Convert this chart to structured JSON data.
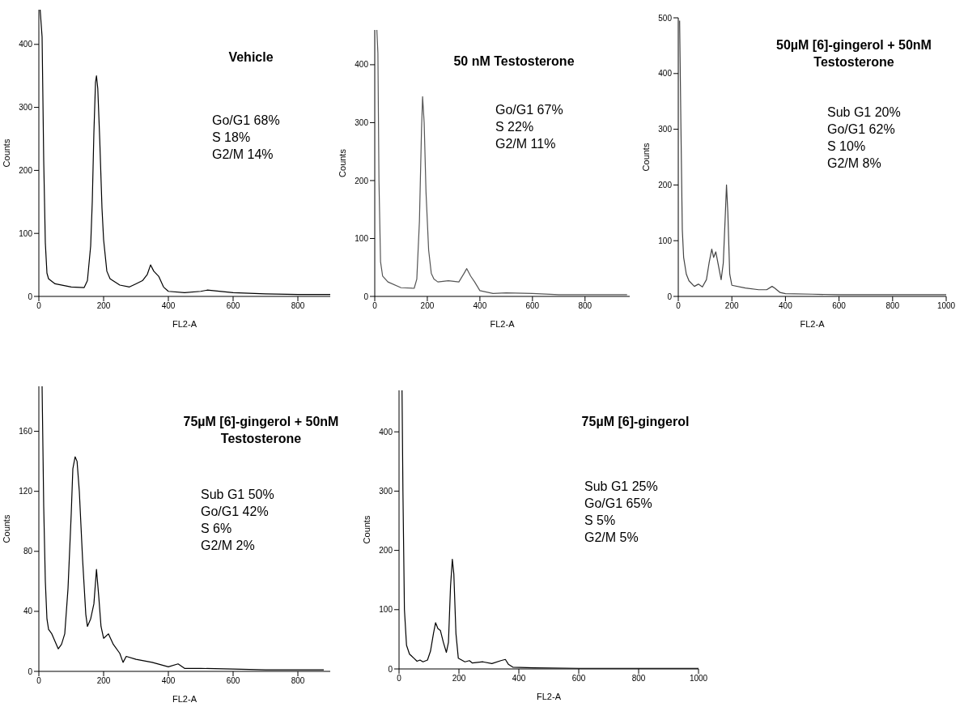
{
  "chart_data": [
    {
      "type": "line",
      "title": "Vehicle",
      "xlabel": "FL2-A",
      "ylabel": "Counts",
      "marker": "none",
      "color": "#000000",
      "xlim": [
        0,
        900
      ],
      "ylim": [
        0,
        455
      ],
      "xticks": [
        0,
        200,
        400,
        600,
        800
      ],
      "yticks": [
        0,
        100,
        200,
        300,
        400
      ],
      "x": [
        4,
        10,
        15,
        20,
        25,
        30,
        50,
        100,
        140,
        150,
        160,
        165,
        170,
        175,
        178,
        182,
        188,
        195,
        200,
        210,
        220,
        250,
        280,
        300,
        320,
        335,
        345,
        355,
        370,
        385,
        400,
        450,
        500,
        520,
        600,
        700,
        800,
        900
      ],
      "values": [
        455,
        412,
        216,
        85,
        37,
        28,
        20,
        15,
        14,
        25,
        80,
        150,
        260,
        340,
        350,
        330,
        250,
        140,
        90,
        40,
        28,
        18,
        15,
        20,
        25,
        35,
        50,
        40,
        32,
        15,
        8,
        6,
        8,
        10,
        6,
        4,
        3,
        3
      ],
      "annotations": [
        "Go/G1 68%",
        "S 18%",
        "G2/M 14%"
      ]
    },
    {
      "type": "line",
      "title": "50 nM Testosterone",
      "xlabel": "FL2-A",
      "ylabel": "Counts",
      "marker": "none",
      "color": "#555555",
      "xlim": [
        0,
        970
      ],
      "ylim": [
        0,
        460
      ],
      "xticks": [
        0,
        200,
        400,
        600,
        800
      ],
      "yticks": [
        0,
        100,
        200,
        300,
        400
      ],
      "x": [
        8,
        12,
        16,
        22,
        30,
        50,
        100,
        150,
        160,
        170,
        178,
        182,
        188,
        195,
        205,
        215,
        225,
        240,
        280,
        320,
        340,
        350,
        365,
        380,
        400,
        450,
        500,
        600,
        700,
        800,
        900,
        960
      ],
      "values": [
        460,
        420,
        200,
        60,
        35,
        25,
        15,
        14,
        30,
        130,
        290,
        345,
        300,
        180,
        80,
        40,
        30,
        25,
        27,
        25,
        40,
        48,
        35,
        25,
        10,
        5,
        6,
        5,
        3,
        3,
        3,
        3
      ],
      "annotations": [
        "Go/G1 67%",
        "S 22%",
        "G2/M 11%"
      ]
    },
    {
      "type": "line",
      "title": "50µM [6]-gingerol + 50nM Testosterone",
      "xlabel": "FL2-A",
      "ylabel": "Counts",
      "marker": "none",
      "color": "#444444",
      "xlim": [
        0,
        1000
      ],
      "ylim": [
        0,
        500
      ],
      "xticks": [
        0,
        200,
        400,
        600,
        800,
        1000
      ],
      "yticks": [
        0,
        100,
        200,
        300,
        400,
        500
      ],
      "x": [
        5,
        10,
        15,
        20,
        30,
        40,
        60,
        75,
        90,
        105,
        115,
        125,
        132,
        140,
        150,
        160,
        168,
        175,
        180,
        185,
        192,
        200,
        250,
        300,
        330,
        350,
        360,
        380,
        400,
        500,
        600,
        800,
        1000
      ],
      "values": [
        495,
        300,
        120,
        70,
        40,
        28,
        18,
        22,
        17,
        30,
        60,
        85,
        70,
        80,
        55,
        30,
        60,
        140,
        200,
        150,
        40,
        20,
        15,
        12,
        12,
        18,
        15,
        7,
        5,
        4,
        3,
        3,
        3
      ],
      "annotations": [
        "Sub G1 20%",
        "Go/G1 62%",
        "S 10%",
        "G2/M 8%"
      ]
    },
    {
      "type": "line",
      "title": "75µM [6]-gingerol + 50nM Testosterone",
      "xlabel": "FL2-A",
      "ylabel": "Counts",
      "marker": "none",
      "color": "#000000",
      "xlim": [
        0,
        900
      ],
      "ylim": [
        0,
        190
      ],
      "xticks": [
        0,
        200,
        400,
        600,
        800
      ],
      "yticks": [
        0,
        40,
        80,
        120,
        160
      ],
      "x": [
        10,
        15,
        20,
        25,
        30,
        40,
        50,
        60,
        70,
        80,
        90,
        100,
        105,
        112,
        118,
        125,
        135,
        145,
        150,
        160,
        170,
        178,
        185,
        192,
        200,
        215,
        230,
        250,
        260,
        270,
        300,
        350,
        400,
        430,
        450,
        500,
        600,
        700,
        800,
        880
      ],
      "values": [
        190,
        110,
        60,
        35,
        28,
        25,
        20,
        15,
        18,
        25,
        55,
        105,
        135,
        143,
        140,
        120,
        75,
        38,
        30,
        35,
        45,
        68,
        50,
        30,
        22,
        25,
        18,
        12,
        6,
        10,
        8,
        6,
        3,
        5,
        2,
        2,
        1.5,
        1,
        1,
        1
      ],
      "annotations": [
        "Sub G1 50%",
        "Go/G1 42%",
        "S 6%",
        "G2/M 2%"
      ]
    },
    {
      "type": "line",
      "title": "75µM [6]-gingerol",
      "xlabel": "FL2-A",
      "ylabel": "Counts",
      "marker": "none",
      "color": "#000000",
      "xlim": [
        0,
        1000
      ],
      "ylim": [
        0,
        470
      ],
      "xticks": [
        0,
        200,
        400,
        600,
        800,
        1000
      ],
      "yticks": [
        0,
        100,
        200,
        300,
        400
      ],
      "x": [
        10,
        13,
        18,
        25,
        35,
        50,
        60,
        70,
        80,
        95,
        105,
        115,
        122,
        130,
        138,
        148,
        158,
        165,
        172,
        178,
        183,
        190,
        198,
        220,
        235,
        245,
        280,
        310,
        340,
        355,
        365,
        380,
        450,
        600,
        800,
        1000
      ],
      "values": [
        470,
        300,
        100,
        40,
        25,
        18,
        13,
        15,
        12,
        15,
        30,
        60,
        78,
        68,
        65,
        45,
        28,
        45,
        140,
        185,
        160,
        60,
        18,
        12,
        14,
        10,
        12,
        9,
        14,
        16,
        8,
        3,
        2,
        1,
        1,
        1
      ],
      "annotations": [
        "Sub G1 25%",
        "Go/G1 65%",
        "S 5%",
        "G2/M 5%"
      ]
    }
  ]
}
